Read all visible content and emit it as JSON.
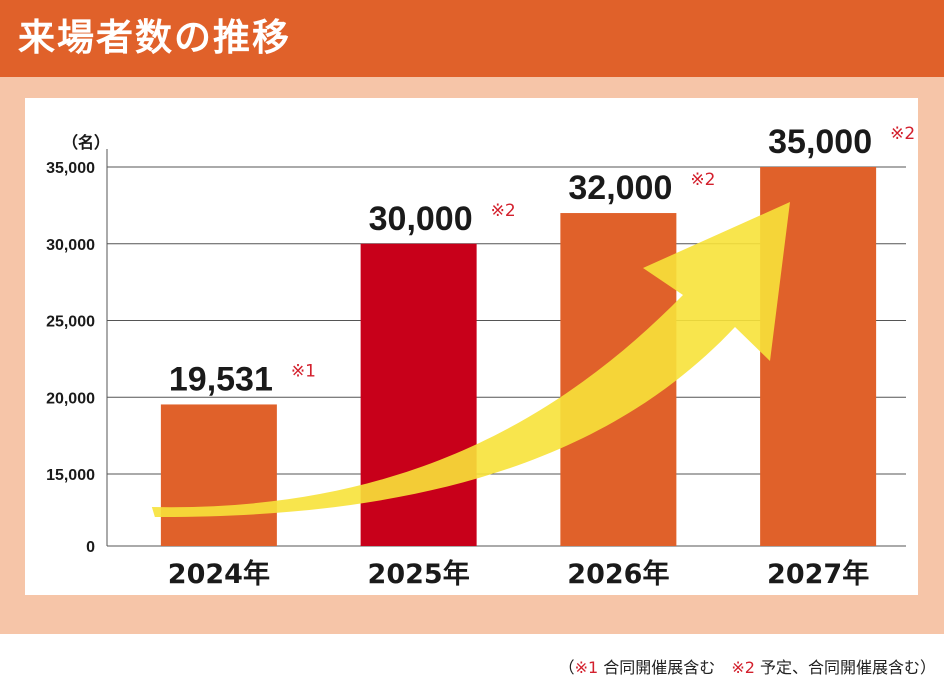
{
  "header": {
    "title": "来場者数の推移"
  },
  "colors": {
    "header_band": "#e0612a",
    "frame": "#f6c5a8",
    "bar_default": "#e0612a",
    "bar_highlight": "#c8001a",
    "arrow": "#f7e23a",
    "note_mark": "#d3202d"
  },
  "chart_data": {
    "type": "bar",
    "unit_label": "（名）",
    "categories": [
      "2024年",
      "2025年",
      "2026年",
      "2027年"
    ],
    "values": [
      19531,
      30000,
      32000,
      35000
    ],
    "value_labels": [
      "19,531",
      "30,000",
      "32,000",
      "35,000"
    ],
    "value_notes": [
      "※1",
      "※2",
      "※2",
      "※2"
    ],
    "highlight_index": 1,
    "yticks": [
      0,
      15000,
      20000,
      25000,
      30000,
      35000
    ],
    "ytick_labels": [
      "0",
      "15,000",
      "20,000",
      "25,000",
      "30,000",
      "35,000"
    ],
    "axis_break": {
      "from": 0,
      "to": 10000
    },
    "ylim": [
      0,
      35000
    ],
    "grid": true,
    "trend_arrow": "rising"
  },
  "footnote": {
    "open": "（",
    "mark1": "※1",
    "text1": " 合同開催展含む　",
    "mark2": "※2",
    "text2": " 予定、合同開催展含む）"
  }
}
